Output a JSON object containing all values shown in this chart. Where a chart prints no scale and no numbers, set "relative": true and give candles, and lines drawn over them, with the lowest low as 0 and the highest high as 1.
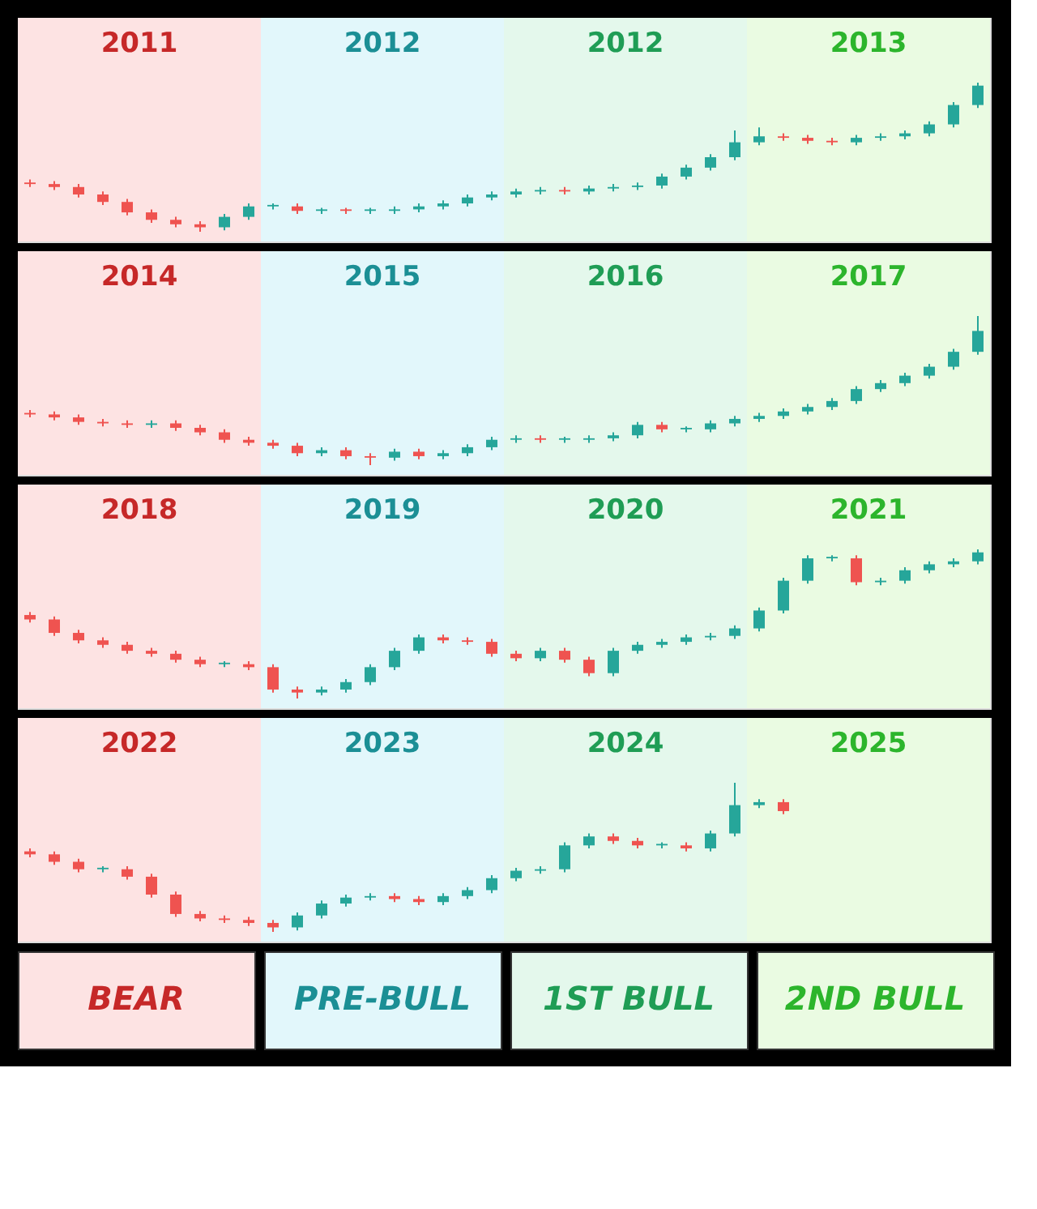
{
  "chart_data": [
    {
      "type": "candlestick",
      "relative": true,
      "tick_labels": false,
      "categories": [
        null,
        null,
        null,
        null,
        null,
        null,
        null,
        null,
        null,
        null,
        null,
        null,
        null,
        null,
        null,
        null,
        null,
        null,
        null,
        null,
        null,
        null,
        null,
        null,
        null,
        null,
        null,
        null,
        null,
        null,
        null,
        null,
        null,
        null,
        null,
        null,
        null,
        null,
        null,
        null
      ],
      "annotations": [
        "2011",
        "2012",
        "2012",
        "2013"
      ],
      "ohlc": [
        [
          0.33,
          0.35,
          0.3,
          0.32
        ],
        [
          0.32,
          0.34,
          0.28,
          0.3
        ],
        [
          0.3,
          0.32,
          0.23,
          0.25
        ],
        [
          0.25,
          0.27,
          0.18,
          0.2
        ],
        [
          0.2,
          0.22,
          0.11,
          0.13
        ],
        [
          0.13,
          0.15,
          0.06,
          0.08
        ],
        [
          0.08,
          0.1,
          0.03,
          0.05
        ],
        [
          0.05,
          0.07,
          0.0,
          0.03
        ],
        [
          0.03,
          0.12,
          0.01,
          0.1
        ],
        [
          0.1,
          0.19,
          0.08,
          0.17
        ],
        [
          0.17,
          0.19,
          0.15,
          0.18
        ],
        [
          0.17,
          0.19,
          0.12,
          0.14
        ],
        [
          0.14,
          0.16,
          0.12,
          0.15
        ],
        [
          0.15,
          0.16,
          0.12,
          0.14
        ],
        [
          0.14,
          0.16,
          0.12,
          0.15
        ],
        [
          0.14,
          0.17,
          0.12,
          0.15
        ],
        [
          0.15,
          0.19,
          0.13,
          0.17
        ],
        [
          0.17,
          0.21,
          0.15,
          0.19
        ],
        [
          0.19,
          0.25,
          0.17,
          0.23
        ],
        [
          0.23,
          0.27,
          0.21,
          0.25
        ],
        [
          0.25,
          0.29,
          0.23,
          0.27
        ],
        [
          0.27,
          0.3,
          0.25,
          0.28
        ],
        [
          0.28,
          0.3,
          0.25,
          0.27
        ],
        [
          0.27,
          0.31,
          0.25,
          0.29
        ],
        [
          0.29,
          0.32,
          0.27,
          0.3
        ],
        [
          0.3,
          0.33,
          0.28,
          0.31
        ],
        [
          0.31,
          0.39,
          0.29,
          0.37
        ],
        [
          0.37,
          0.45,
          0.35,
          0.43
        ],
        [
          0.43,
          0.52,
          0.41,
          0.5
        ],
        [
          0.5,
          0.68,
          0.48,
          0.6
        ],
        [
          0.6,
          0.7,
          0.58,
          0.64
        ],
        [
          0.64,
          0.66,
          0.61,
          0.63
        ],
        [
          0.63,
          0.65,
          0.59,
          0.61
        ],
        [
          0.61,
          0.63,
          0.58,
          0.6
        ],
        [
          0.6,
          0.65,
          0.58,
          0.63
        ],
        [
          0.63,
          0.66,
          0.61,
          0.64
        ],
        [
          0.64,
          0.68,
          0.62,
          0.66
        ],
        [
          0.66,
          0.74,
          0.64,
          0.72
        ],
        [
          0.72,
          0.87,
          0.7,
          0.85
        ],
        [
          0.85,
          1.0,
          0.83,
          0.98
        ]
      ],
      "colors": [
        "#ef5350",
        "#ef5350",
        "#ef5350",
        "#ef5350",
        "#ef5350",
        "#ef5350",
        "#ef5350",
        "#ef5350",
        "#26a69a",
        "#26a69a",
        "#26a69a",
        "#ef5350",
        "#26a69a",
        "#ef5350",
        "#26a69a",
        "#26a69a",
        "#26a69a",
        "#26a69a",
        "#26a69a",
        "#26a69a",
        "#26a69a",
        "#26a69a",
        "#ef5350",
        "#26a69a",
        "#26a69a",
        "#26a69a",
        "#26a69a",
        "#26a69a",
        "#26a69a",
        "#26a69a",
        "#26a69a",
        "#ef5350",
        "#ef5350",
        "#ef5350",
        "#26a69a",
        "#26a69a",
        "#26a69a",
        "#26a69a",
        "#26a69a",
        "#26a69a"
      ]
    },
    {
      "type": "candlestick",
      "relative": true,
      "tick_labels": false,
      "categories": [
        null,
        null,
        null,
        null,
        null,
        null,
        null,
        null,
        null,
        null,
        null,
        null,
        null,
        null,
        null,
        null,
        null,
        null,
        null,
        null,
        null,
        null,
        null,
        null,
        null,
        null,
        null,
        null,
        null,
        null,
        null,
        null,
        null,
        null,
        null,
        null,
        null,
        null,
        null,
        null
      ],
      "annotations": [
        "2014",
        "2015",
        "2016",
        "2017"
      ],
      "ohlc": [
        [
          0.35,
          0.37,
          0.32,
          0.34
        ],
        [
          0.34,
          0.36,
          0.3,
          0.32
        ],
        [
          0.32,
          0.34,
          0.27,
          0.29
        ],
        [
          0.29,
          0.31,
          0.26,
          0.28
        ],
        [
          0.28,
          0.3,
          0.25,
          0.27
        ],
        [
          0.27,
          0.3,
          0.25,
          0.28
        ],
        [
          0.28,
          0.3,
          0.23,
          0.25
        ],
        [
          0.25,
          0.27,
          0.2,
          0.22
        ],
        [
          0.22,
          0.24,
          0.15,
          0.17
        ],
        [
          0.17,
          0.19,
          0.13,
          0.15
        ],
        [
          0.15,
          0.17,
          0.11,
          0.13
        ],
        [
          0.13,
          0.15,
          0.06,
          0.08
        ],
        [
          0.08,
          0.12,
          0.06,
          0.1
        ],
        [
          0.1,
          0.12,
          0.04,
          0.06
        ],
        [
          0.06,
          0.08,
          0.0,
          0.05
        ],
        [
          0.05,
          0.11,
          0.03,
          0.09
        ],
        [
          0.09,
          0.11,
          0.04,
          0.06
        ],
        [
          0.06,
          0.1,
          0.04,
          0.08
        ],
        [
          0.08,
          0.14,
          0.06,
          0.12
        ],
        [
          0.12,
          0.19,
          0.1,
          0.17
        ],
        [
          0.17,
          0.2,
          0.15,
          0.18
        ],
        [
          0.18,
          0.2,
          0.15,
          0.17
        ],
        [
          0.17,
          0.19,
          0.15,
          0.18
        ],
        [
          0.17,
          0.2,
          0.15,
          0.18
        ],
        [
          0.18,
          0.22,
          0.16,
          0.2
        ],
        [
          0.2,
          0.29,
          0.18,
          0.27
        ],
        [
          0.27,
          0.29,
          0.22,
          0.24
        ],
        [
          0.24,
          0.26,
          0.22,
          0.25
        ],
        [
          0.24,
          0.3,
          0.22,
          0.28
        ],
        [
          0.28,
          0.33,
          0.26,
          0.31
        ],
        [
          0.31,
          0.35,
          0.29,
          0.33
        ],
        [
          0.33,
          0.38,
          0.31,
          0.36
        ],
        [
          0.36,
          0.41,
          0.34,
          0.39
        ],
        [
          0.39,
          0.45,
          0.37,
          0.43
        ],
        [
          0.43,
          0.53,
          0.41,
          0.51
        ],
        [
          0.51,
          0.57,
          0.49,
          0.55
        ],
        [
          0.55,
          0.62,
          0.53,
          0.6
        ],
        [
          0.6,
          0.68,
          0.58,
          0.66
        ],
        [
          0.66,
          0.78,
          0.64,
          0.76
        ],
        [
          0.76,
          1.0,
          0.74,
          0.9
        ]
      ],
      "colors": [
        "#ef5350",
        "#ef5350",
        "#ef5350",
        "#ef5350",
        "#ef5350",
        "#26a69a",
        "#ef5350",
        "#ef5350",
        "#ef5350",
        "#ef5350",
        "#ef5350",
        "#ef5350",
        "#26a69a",
        "#ef5350",
        "#ef5350",
        "#26a69a",
        "#ef5350",
        "#26a69a",
        "#26a69a",
        "#26a69a",
        "#26a69a",
        "#ef5350",
        "#26a69a",
        "#26a69a",
        "#26a69a",
        "#26a69a",
        "#ef5350",
        "#26a69a",
        "#26a69a",
        "#26a69a",
        "#26a69a",
        "#26a69a",
        "#26a69a",
        "#26a69a",
        "#26a69a",
        "#26a69a",
        "#26a69a",
        "#26a69a",
        "#26a69a",
        "#26a69a"
      ]
    },
    {
      "type": "candlestick",
      "relative": true,
      "tick_labels": false,
      "categories": [
        null,
        null,
        null,
        null,
        null,
        null,
        null,
        null,
        null,
        null,
        null,
        null,
        null,
        null,
        null,
        null,
        null,
        null,
        null,
        null,
        null,
        null,
        null,
        null,
        null,
        null,
        null,
        null,
        null,
        null,
        null,
        null,
        null,
        null,
        null,
        null,
        null,
        null,
        null,
        null
      ],
      "annotations": [
        "2018",
        "2019",
        "2020",
        "2021"
      ],
      "ohlc": [
        [
          0.56,
          0.58,
          0.51,
          0.53
        ],
        [
          0.53,
          0.55,
          0.42,
          0.44
        ],
        [
          0.44,
          0.46,
          0.37,
          0.39
        ],
        [
          0.39,
          0.41,
          0.34,
          0.36
        ],
        [
          0.36,
          0.38,
          0.3,
          0.32
        ],
        [
          0.32,
          0.34,
          0.28,
          0.3
        ],
        [
          0.3,
          0.32,
          0.24,
          0.26
        ],
        [
          0.26,
          0.28,
          0.21,
          0.23
        ],
        [
          0.23,
          0.25,
          0.21,
          0.24
        ],
        [
          0.23,
          0.25,
          0.19,
          0.21
        ],
        [
          0.21,
          0.23,
          0.04,
          0.06
        ],
        [
          0.06,
          0.08,
          0.0,
          0.04
        ],
        [
          0.04,
          0.08,
          0.02,
          0.06
        ],
        [
          0.06,
          0.13,
          0.04,
          0.11
        ],
        [
          0.11,
          0.23,
          0.09,
          0.21
        ],
        [
          0.21,
          0.34,
          0.19,
          0.32
        ],
        [
          0.32,
          0.43,
          0.3,
          0.41
        ],
        [
          0.41,
          0.43,
          0.37,
          0.39
        ],
        [
          0.39,
          0.41,
          0.36,
          0.38
        ],
        [
          0.38,
          0.4,
          0.28,
          0.3
        ],
        [
          0.3,
          0.32,
          0.25,
          0.27
        ],
        [
          0.27,
          0.34,
          0.25,
          0.32
        ],
        [
          0.32,
          0.34,
          0.24,
          0.26
        ],
        [
          0.26,
          0.28,
          0.15,
          0.17
        ],
        [
          0.17,
          0.34,
          0.15,
          0.32
        ],
        [
          0.32,
          0.38,
          0.3,
          0.36
        ],
        [
          0.36,
          0.4,
          0.34,
          0.38
        ],
        [
          0.38,
          0.43,
          0.36,
          0.41
        ],
        [
          0.41,
          0.44,
          0.39,
          0.42
        ],
        [
          0.42,
          0.49,
          0.4,
          0.47
        ],
        [
          0.47,
          0.61,
          0.45,
          0.59
        ],
        [
          0.59,
          0.81,
          0.57,
          0.79
        ],
        [
          0.79,
          0.96,
          0.77,
          0.94
        ],
        [
          0.94,
          0.96,
          0.92,
          0.95
        ],
        [
          0.94,
          0.96,
          0.76,
          0.78
        ],
        [
          0.78,
          0.81,
          0.76,
          0.79
        ],
        [
          0.79,
          0.88,
          0.77,
          0.86
        ],
        [
          0.86,
          0.92,
          0.84,
          0.9
        ],
        [
          0.9,
          0.94,
          0.88,
          0.92
        ],
        [
          0.92,
          1.0,
          0.9,
          0.98
        ]
      ],
      "colors": [
        "#ef5350",
        "#ef5350",
        "#ef5350",
        "#ef5350",
        "#ef5350",
        "#ef5350",
        "#ef5350",
        "#ef5350",
        "#26a69a",
        "#ef5350",
        "#ef5350",
        "#ef5350",
        "#26a69a",
        "#26a69a",
        "#26a69a",
        "#26a69a",
        "#26a69a",
        "#ef5350",
        "#ef5350",
        "#ef5350",
        "#ef5350",
        "#26a69a",
        "#ef5350",
        "#ef5350",
        "#26a69a",
        "#26a69a",
        "#26a69a",
        "#26a69a",
        "#26a69a",
        "#26a69a",
        "#26a69a",
        "#26a69a",
        "#26a69a",
        "#26a69a",
        "#ef5350",
        "#26a69a",
        "#26a69a",
        "#26a69a",
        "#26a69a",
        "#26a69a"
      ]
    },
    {
      "type": "candlestick",
      "relative": true,
      "tick_labels": false,
      "categories": [
        null,
        null,
        null,
        null,
        null,
        null,
        null,
        null,
        null,
        null,
        null,
        null,
        null,
        null,
        null,
        null,
        null,
        null,
        null,
        null,
        null,
        null,
        null,
        null,
        null,
        null,
        null,
        null,
        null,
        null,
        null,
        null
      ],
      "annotations": [
        "2022",
        "2023",
        "2024",
        "2025"
      ],
      "ohlc": [
        [
          0.54,
          0.56,
          0.5,
          0.52
        ],
        [
          0.52,
          0.54,
          0.45,
          0.47
        ],
        [
          0.47,
          0.49,
          0.4,
          0.42
        ],
        [
          0.42,
          0.44,
          0.4,
          0.43
        ],
        [
          0.42,
          0.44,
          0.35,
          0.37
        ],
        [
          0.37,
          0.39,
          0.23,
          0.25
        ],
        [
          0.25,
          0.27,
          0.1,
          0.12
        ],
        [
          0.12,
          0.14,
          0.07,
          0.09
        ],
        [
          0.09,
          0.11,
          0.06,
          0.08
        ],
        [
          0.08,
          0.1,
          0.04,
          0.06
        ],
        [
          0.06,
          0.08,
          0.0,
          0.03
        ],
        [
          0.03,
          0.13,
          0.01,
          0.11
        ],
        [
          0.11,
          0.21,
          0.09,
          0.19
        ],
        [
          0.19,
          0.25,
          0.17,
          0.23
        ],
        [
          0.23,
          0.26,
          0.21,
          0.24
        ],
        [
          0.24,
          0.26,
          0.2,
          0.22
        ],
        [
          0.22,
          0.24,
          0.18,
          0.2
        ],
        [
          0.2,
          0.26,
          0.18,
          0.24
        ],
        [
          0.24,
          0.3,
          0.22,
          0.28
        ],
        [
          0.28,
          0.38,
          0.26,
          0.36
        ],
        [
          0.36,
          0.43,
          0.34,
          0.41
        ],
        [
          0.41,
          0.44,
          0.39,
          0.42
        ],
        [
          0.42,
          0.6,
          0.4,
          0.58
        ],
        [
          0.58,
          0.66,
          0.56,
          0.64
        ],
        [
          0.64,
          0.66,
          0.59,
          0.61
        ],
        [
          0.61,
          0.63,
          0.56,
          0.58
        ],
        [
          0.58,
          0.6,
          0.56,
          0.59
        ],
        [
          0.58,
          0.6,
          0.54,
          0.56
        ],
        [
          0.56,
          0.68,
          0.54,
          0.66
        ],
        [
          0.66,
          1.0,
          0.64,
          0.85
        ],
        [
          0.85,
          0.89,
          0.83,
          0.87
        ],
        [
          0.87,
          0.89,
          0.79,
          0.81
        ]
      ],
      "colors": [
        "#ef5350",
        "#ef5350",
        "#ef5350",
        "#26a69a",
        "#ef5350",
        "#ef5350",
        "#ef5350",
        "#ef5350",
        "#ef5350",
        "#ef5350",
        "#ef5350",
        "#26a69a",
        "#26a69a",
        "#26a69a",
        "#26a69a",
        "#ef5350",
        "#ef5350",
        "#26a69a",
        "#26a69a",
        "#26a69a",
        "#26a69a",
        "#26a69a",
        "#26a69a",
        "#26a69a",
        "#ef5350",
        "#ef5350",
        "#26a69a",
        "#ef5350",
        "#26a69a",
        "#26a69a",
        "#26a69a",
        "#ef5350"
      ]
    },
    {
      "type": "other",
      "annotations": [
        "BEAR",
        "PRE-BULL",
        "1ST BULL",
        "2ND BULL"
      ],
      "colors": [
        "#fde3e3",
        "#e2f7fb",
        "#e4f8ec",
        "#eafbe2"
      ]
    }
  ]
}
